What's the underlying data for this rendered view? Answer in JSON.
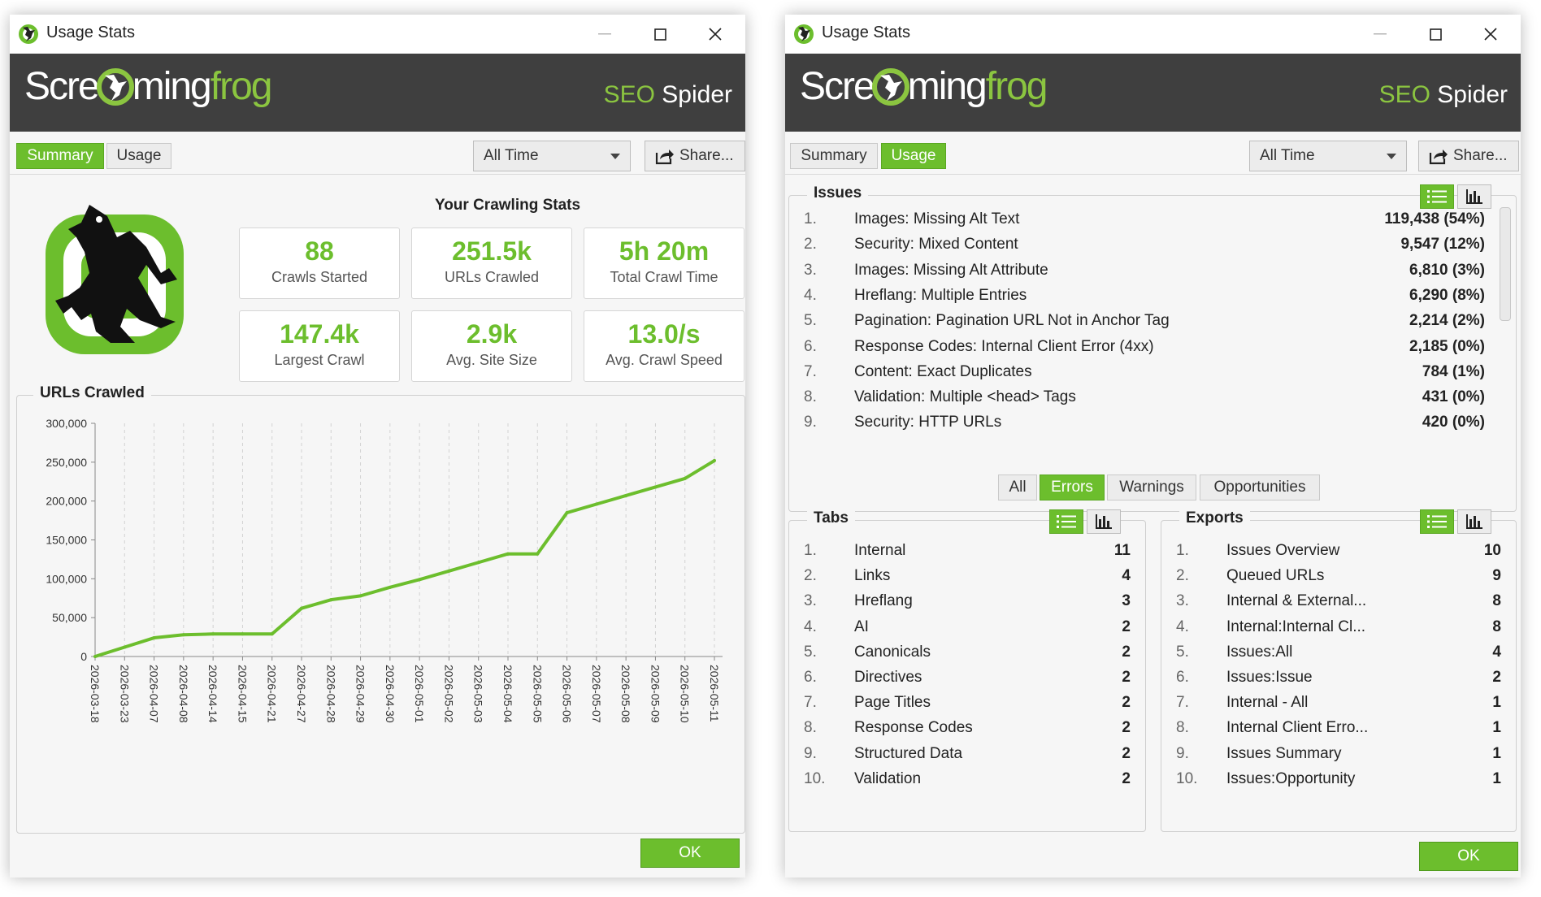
{
  "window_title": "Usage Stats",
  "brand": {
    "logo_a": "Scre",
    "logo_b": "ming",
    "logo_c": "frog",
    "seo": "SEO",
    "spider": "Spider"
  },
  "toolbar": {
    "tab_summary": "Summary",
    "tab_usage": "Usage",
    "period": "All Time",
    "share": "Share..."
  },
  "left": {
    "active_tab": "Summary",
    "stats_title": "Your Crawling Stats",
    "stats": [
      {
        "value": "88",
        "label": "Crawls Started"
      },
      {
        "value": "251.5k",
        "label": "URLs Crawled"
      },
      {
        "value": "5h 20m",
        "label": "Total Crawl Time"
      },
      {
        "value": "147.4k",
        "label": "Largest Crawl"
      },
      {
        "value": "2.9k",
        "label": "Avg. Site Size"
      },
      {
        "value": "13.0/s",
        "label": "Avg. Crawl Speed"
      }
    ],
    "chart_title": "URLs Crawled",
    "ok": "OK"
  },
  "chart_data": {
    "type": "line",
    "title": "URLs Crawled",
    "x": [
      "2026-03-18",
      "2026-03-23",
      "2026-04-07",
      "2026-04-08",
      "2026-04-14",
      "2026-04-15",
      "2026-04-21",
      "2026-04-27",
      "2026-04-28",
      "2026-04-29",
      "2026-04-30",
      "2026-05-01",
      "2026-05-02",
      "2026-05-03",
      "2026-05-04",
      "2026-05-05",
      "2026-05-06",
      "2026-05-07",
      "2026-05-08",
      "2026-05-09",
      "2026-05-10",
      "2026-05-11"
    ],
    "y": [
      0,
      12000,
      24000,
      28000,
      29000,
      29000,
      29000,
      62000,
      73000,
      78000,
      89000,
      99000,
      110000,
      121000,
      132000,
      132000,
      185000,
      196000,
      207000,
      218000,
      229000,
      252000
    ],
    "yticks": [
      "0",
      "50,000",
      "100,000",
      "150,000",
      "200,000",
      "250,000",
      "300,000"
    ],
    "ylim": [
      0,
      300000
    ],
    "color": "#6cbe2d",
    "grid": "vertical dashed"
  },
  "right": {
    "active_tab": "Usage",
    "issues_title": "Issues",
    "issues": [
      {
        "n": "1.",
        "label": "Images: Missing Alt Text",
        "count": "119,438 (54%)"
      },
      {
        "n": "2.",
        "label": "Security: Mixed Content",
        "count": "9,547 (12%)"
      },
      {
        "n": "3.",
        "label": "Images: Missing Alt Attribute",
        "count": "6,810 (3%)"
      },
      {
        "n": "4.",
        "label": "Hreflang: Multiple Entries",
        "count": "6,290 (8%)"
      },
      {
        "n": "5.",
        "label": "Pagination: Pagination URL Not in Anchor Tag",
        "count": "2,214 (2%)"
      },
      {
        "n": "6.",
        "label": "Response Codes: Internal Client Error (4xx)",
        "count": "2,185 (0%)"
      },
      {
        "n": "7.",
        "label": "Content: Exact Duplicates",
        "count": "784 (1%)"
      },
      {
        "n": "8.",
        "label": "Validation: Multiple <head> Tags",
        "count": "431 (0%)"
      },
      {
        "n": "9.",
        "label": "Security: HTTP URLs",
        "count": "420 (0%)"
      }
    ],
    "filters": [
      "All",
      "Errors",
      "Warnings",
      "Opportunities"
    ],
    "active_filter": "Errors",
    "tabs_title": "Tabs",
    "tabs": [
      {
        "n": "1.",
        "label": "Internal",
        "count": "11"
      },
      {
        "n": "2.",
        "label": "Links",
        "count": "4"
      },
      {
        "n": "3.",
        "label": "Hreflang",
        "count": "3"
      },
      {
        "n": "4.",
        "label": "AI",
        "count": "2"
      },
      {
        "n": "5.",
        "label": "Canonicals",
        "count": "2"
      },
      {
        "n": "6.",
        "label": "Directives",
        "count": "2"
      },
      {
        "n": "7.",
        "label": "Page Titles",
        "count": "2"
      },
      {
        "n": "8.",
        "label": "Response Codes",
        "count": "2"
      },
      {
        "n": "9.",
        "label": "Structured Data",
        "count": "2"
      },
      {
        "n": "10.",
        "label": "Validation",
        "count": "2"
      }
    ],
    "exports_title": "Exports",
    "exports": [
      {
        "n": "1.",
        "label": "Issues Overview",
        "count": "10"
      },
      {
        "n": "2.",
        "label": "Queued URLs",
        "count": "9"
      },
      {
        "n": "3.",
        "label": "Internal & External...",
        "count": "8"
      },
      {
        "n": "4.",
        "label": "Internal:Internal Cl...",
        "count": "8"
      },
      {
        "n": "5.",
        "label": "Issues:All",
        "count": "4"
      },
      {
        "n": "6.",
        "label": "Issues:Issue",
        "count": "2"
      },
      {
        "n": "7.",
        "label": "Internal - All",
        "count": "1"
      },
      {
        "n": "8.",
        "label": "Internal Client Erro...",
        "count": "1"
      },
      {
        "n": "9.",
        "label": "Issues Summary",
        "count": "1"
      },
      {
        "n": "10.",
        "label": "Issues:Opportunity",
        "count": "1"
      }
    ],
    "ok": "OK"
  },
  "colors": {
    "accent": "#6cbe2d",
    "banner": "#3f3f3f"
  },
  "icons": [
    "frog-logo-icon",
    "minimize-icon",
    "maximize-icon",
    "close-icon",
    "share-icon",
    "list-view-icon",
    "chart-view-icon",
    "chevron-down-icon"
  ]
}
